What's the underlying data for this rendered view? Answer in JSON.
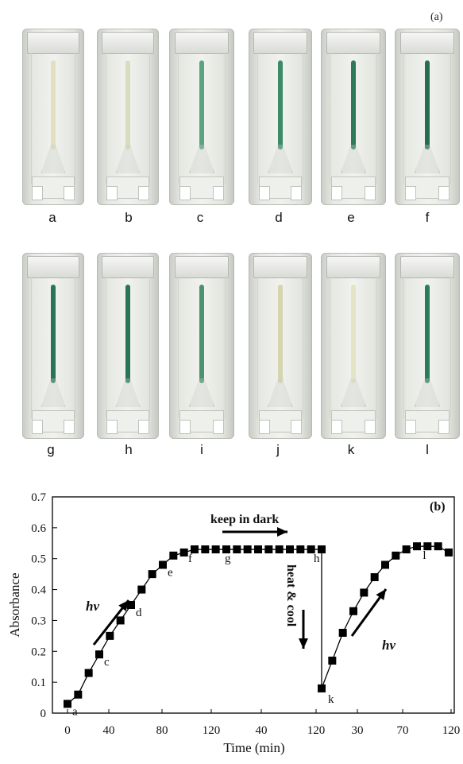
{
  "panel_a": {
    "label": "(a)",
    "vials": [
      {
        "label": "a",
        "tube_color": "#d9cf9a",
        "intensity": 0.15
      },
      {
        "label": "b",
        "tube_color": "#c4cf9c",
        "intensity": 0.25
      },
      {
        "label": "c",
        "tube_color": "#2f8f62",
        "intensity": 0.6
      },
      {
        "label": "d",
        "tube_color": "#217a52",
        "intensity": 0.75
      },
      {
        "label": "e",
        "tube_color": "#1d6e4b",
        "intensity": 0.85
      },
      {
        "label": "f",
        "tube_color": "#1a6645",
        "intensity": 0.9
      },
      {
        "label": "g",
        "tube_color": "#1d6e4b",
        "intensity": 0.9
      },
      {
        "label": "h",
        "tube_color": "#1d6e4b",
        "intensity": 0.9
      },
      {
        "label": "i",
        "tube_color": "#2a8055",
        "intensity": 0.7
      },
      {
        "label": "j",
        "tube_color": "#c9c48e",
        "intensity": 0.35
      },
      {
        "label": "k",
        "tube_color": "#dcd7a4",
        "intensity": 0.15
      },
      {
        "label": "l",
        "tube_color": "#1f7550",
        "intensity": 0.9
      }
    ]
  },
  "chart_data": {
    "type": "line",
    "panel_label": "(b)",
    "ylabel": "Absorbance",
    "xlabel": "Time (min)",
    "yticks": [
      "0",
      "0.1",
      "0.2",
      "0.3",
      "0.4",
      "0.5",
      "0.6",
      "0.7"
    ],
    "ylim": [
      0,
      0.7
    ],
    "xticks": [
      "0",
      "40",
      "80",
      "120",
      "40",
      "120",
      "30",
      "70",
      "120"
    ],
    "segments": [
      {
        "phase": "irradiation 1",
        "x": [
          0,
          10,
          20,
          30,
          40,
          50,
          60,
          70,
          80,
          90,
          100,
          110,
          120
        ],
        "y": [
          0.03,
          0.06,
          0.13,
          0.19,
          0.25,
          0.3,
          0.35,
          0.4,
          0.45,
          0.48,
          0.51,
          0.52,
          0.53
        ]
      },
      {
        "phase": "dark",
        "x": [
          0,
          10,
          20,
          30,
          40,
          50,
          60,
          70,
          80,
          90,
          100,
          110,
          120
        ],
        "y": [
          0.53,
          0.53,
          0.53,
          0.53,
          0.53,
          0.53,
          0.53,
          0.53,
          0.53,
          0.53,
          0.53,
          0.53,
          0.53
        ]
      },
      {
        "phase": "irradiation 2",
        "x": [
          0,
          10,
          20,
          30,
          40,
          50,
          60,
          70,
          80,
          90,
          100,
          110,
          120
        ],
        "y": [
          0.08,
          0.17,
          0.26,
          0.33,
          0.39,
          0.44,
          0.48,
          0.51,
          0.53,
          0.54,
          0.54,
          0.54,
          0.52
        ]
      }
    ],
    "point_labels": [
      {
        "text": "a",
        "seg": 0,
        "i": 0
      },
      {
        "text": "c",
        "seg": 0,
        "i": 3
      },
      {
        "text": "d",
        "seg": 0,
        "i": 6
      },
      {
        "text": "e",
        "seg": 0,
        "i": 9
      },
      {
        "text": "f",
        "seg": 0,
        "i": 12
      },
      {
        "text": "g",
        "seg": 1,
        "i": 3
      },
      {
        "text": "h",
        "seg": 1,
        "i": 12
      },
      {
        "text": "k",
        "seg": 2,
        "i": 0
      },
      {
        "text": "l",
        "seg": 2,
        "i": 10
      }
    ],
    "annotations": {
      "hv": "hv",
      "keep_in_dark": "keep in dark",
      "heat_cool": "heat & cool"
    }
  }
}
